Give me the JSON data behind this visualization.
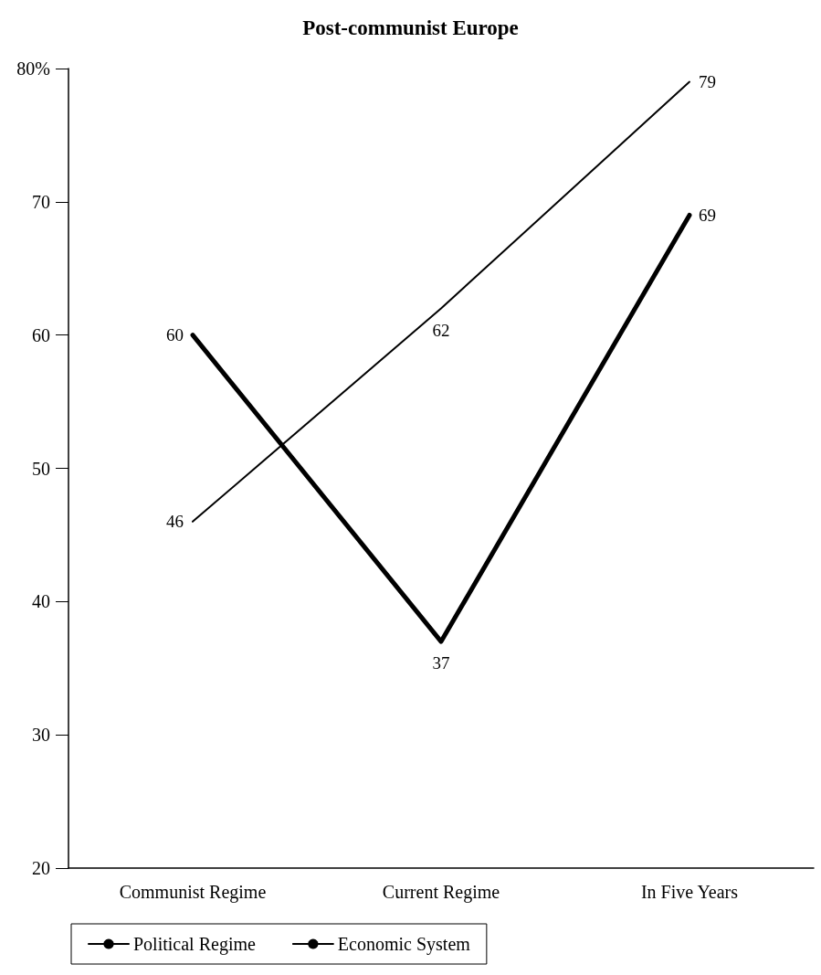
{
  "chart_data": {
    "type": "line",
    "title": "Post-communist Europe",
    "categories": [
      "Communist Regime",
      "Current Regime",
      "In Five Years"
    ],
    "series": [
      {
        "name": "Political Regime",
        "color": "#000000",
        "values": [
          46,
          62,
          79
        ]
      },
      {
        "name": "Economic System",
        "color": "#000000",
        "values": [
          60,
          37,
          69
        ]
      }
    ],
    "ylim": [
      20,
      80
    ],
    "yticks": [
      20,
      30,
      40,
      50,
      60,
      70,
      {
        "value": 80,
        "label": "80%"
      }
    ],
    "grid": false,
    "legend": "bottom",
    "marker": "none",
    "line_style": "solid",
    "data_labels": true
  }
}
